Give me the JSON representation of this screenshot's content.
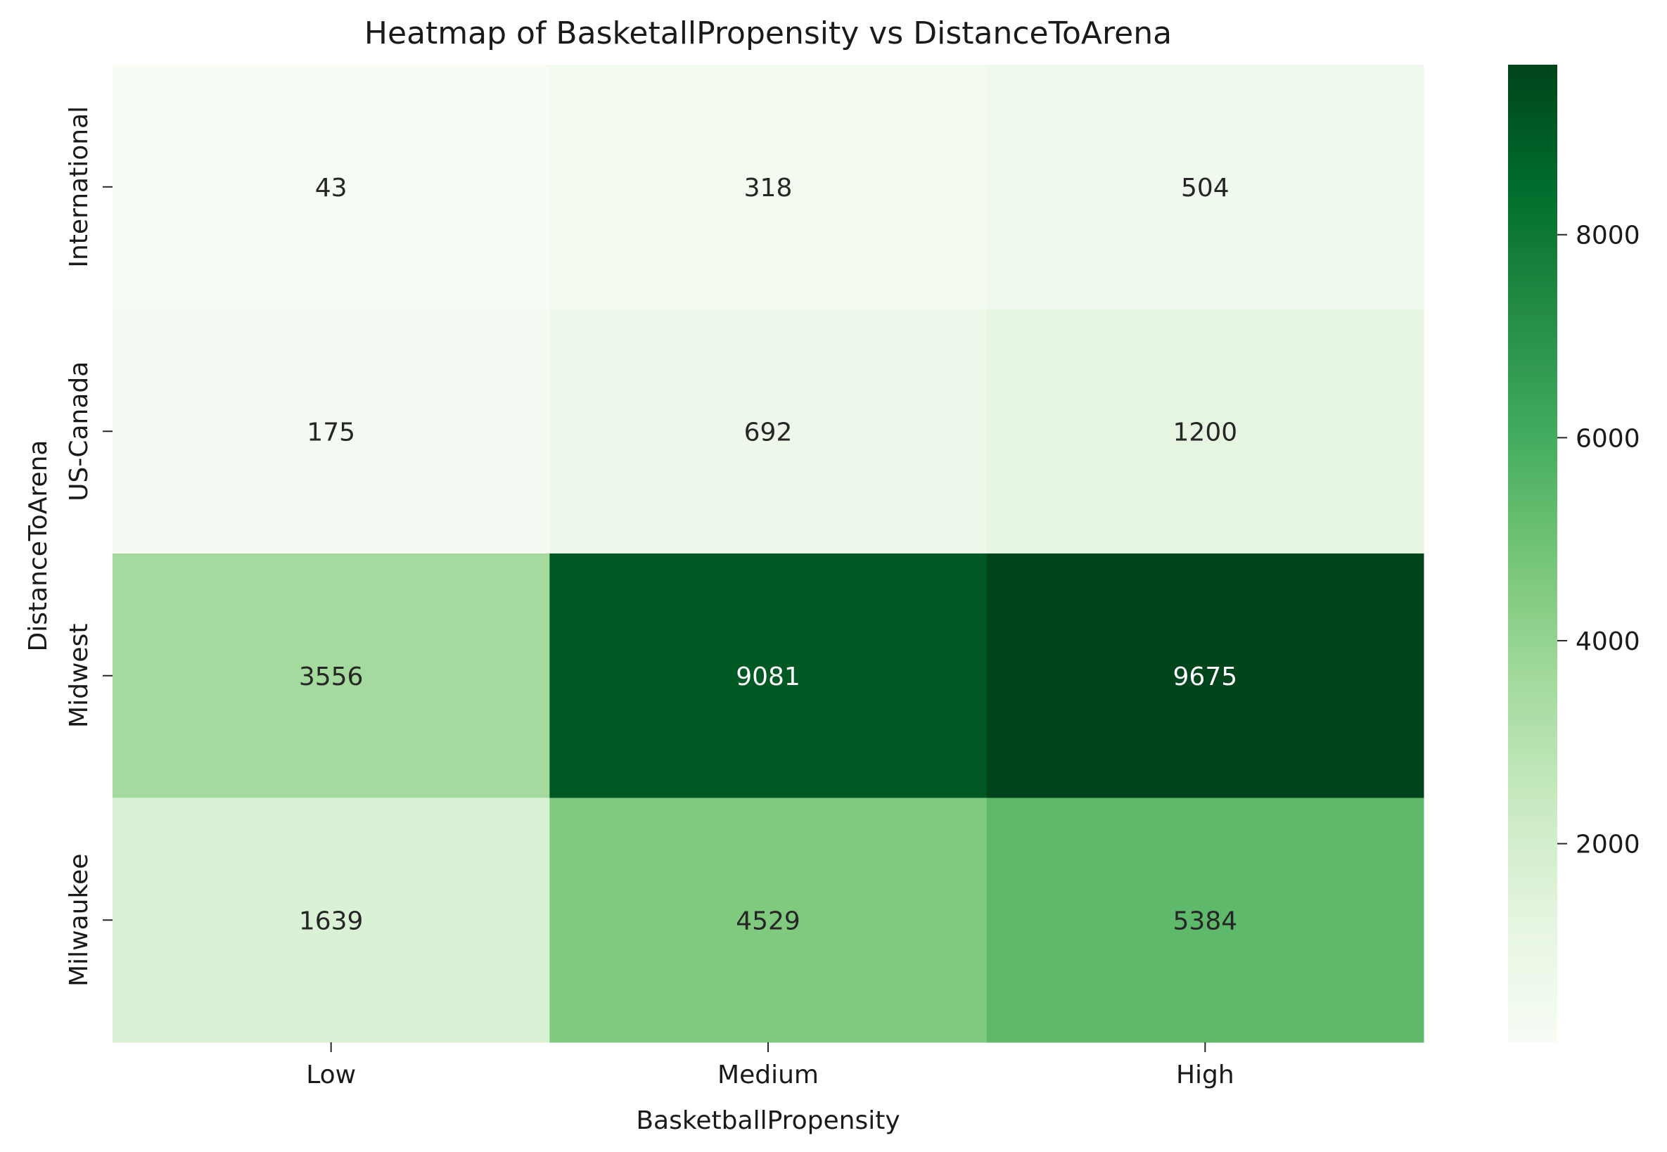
{
  "chart_data": {
    "type": "heatmap",
    "title": "Heatmap of BasketallPropensity vs DistanceToArena",
    "xlabel": "BasketballPropensity",
    "ylabel": "DistanceToArena",
    "x_categories": [
      "Low",
      "Medium",
      "High"
    ],
    "y_categories": [
      "International",
      "US-Canada",
      "Midwest",
      "Milwaukee"
    ],
    "values": [
      [
        43,
        318,
        504
      ],
      [
        175,
        692,
        1200
      ],
      [
        3556,
        9081,
        9675
      ],
      [
        1639,
        4529,
        5384
      ]
    ],
    "colorbar": {
      "min": 43,
      "max": 9675,
      "ticks": [
        "2000",
        "4000",
        "6000",
        "8000"
      ],
      "colormap": "Greens",
      "colors": [
        "#f7fcf5",
        "#e5f5e0",
        "#c7e9c0",
        "#a1d99b",
        "#74c476",
        "#41ab5d",
        "#238b45",
        "#006d2c",
        "#00441b"
      ]
    },
    "grid": false,
    "legend": "colorbar right"
  }
}
